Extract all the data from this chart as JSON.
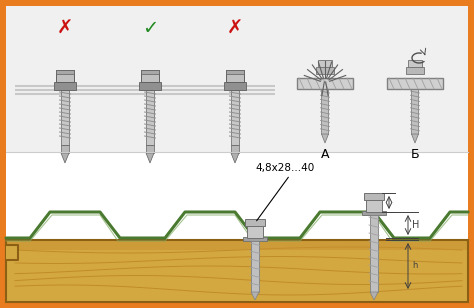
{
  "border_color": "#E87C1E",
  "bg_color": "#FFFFFF",
  "top_bg": "#EFEFEF",
  "bottom_bg": "#FFFFFF",
  "corrugation_color": "#4A7A30",
  "corrugation_lw": 2.2,
  "wood_top_color": "#D4A840",
  "wood_mid_color": "#C89030",
  "wood_bot_color": "#B07820",
  "screw_fill": "#C8C8C8",
  "screw_edge": "#606060",
  "screw_thread": "#909090",
  "cross_color": "#CC1111",
  "check_color": "#228B22",
  "label_size": "4,8x28...40",
  "label_A": "A",
  "label_B": "Б",
  "metal_plate_color": "#D8D8D8",
  "metal_plate_edge": "#909090",
  "dim_color": "#404040",
  "shadow_color": "#B8B8B8"
}
